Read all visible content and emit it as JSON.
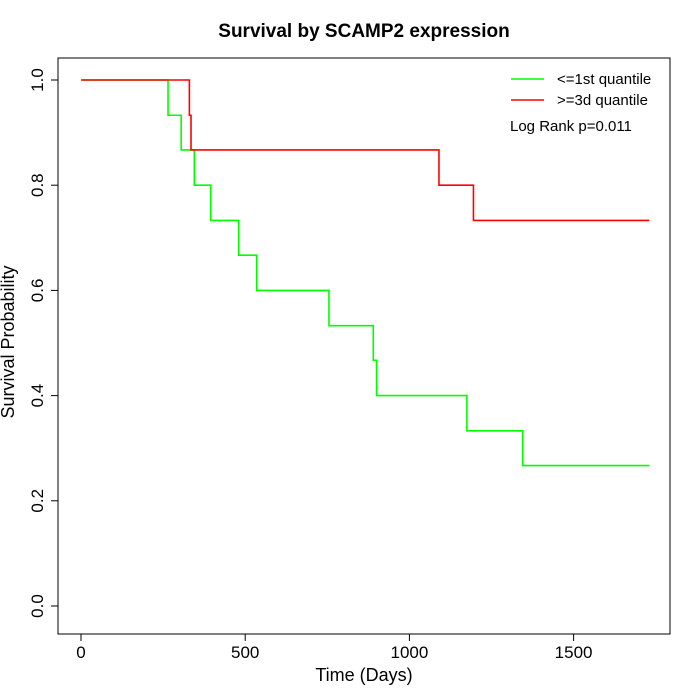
{
  "chart_data": {
    "type": "line",
    "title": "Survival by SCAMP2 expression",
    "xlabel": "Time (Days)",
    "ylabel": "Survival Probability",
    "xlim": [
      0,
      1800
    ],
    "ylim": [
      0,
      1.0
    ],
    "x_ticks": [
      0,
      500,
      1000,
      1500
    ],
    "y_ticks": [
      0.0,
      0.2,
      0.4,
      0.6,
      0.8,
      1.0
    ],
    "x_tick_labels": [
      "0",
      "500",
      "1000",
      "1500"
    ],
    "y_tick_labels": [
      "0.0",
      "0.2",
      "0.4",
      "0.6",
      "0.8",
      "1.0"
    ],
    "grid": false,
    "legend_position": "top-right",
    "annotation": "Log Rank p=0.011",
    "series": [
      {
        "name": "<=1st quantile",
        "color": "#00FF00",
        "step": true,
        "x": [
          0,
          265,
          305,
          345,
          395,
          480,
          535,
          755,
          890,
          900,
          1175,
          1345,
          1730
        ],
        "y": [
          1.0,
          0.933,
          0.867,
          0.8,
          0.733,
          0.667,
          0.6,
          0.533,
          0.467,
          0.4,
          0.333,
          0.267,
          0.267
        ]
      },
      {
        "name": ">=3d quantile",
        "color": "#FF0000",
        "step": true,
        "x": [
          0,
          330,
          335,
          1090,
          1195,
          1730
        ],
        "y": [
          1.0,
          0.933,
          0.867,
          0.8,
          0.733,
          0.733
        ]
      }
    ]
  }
}
